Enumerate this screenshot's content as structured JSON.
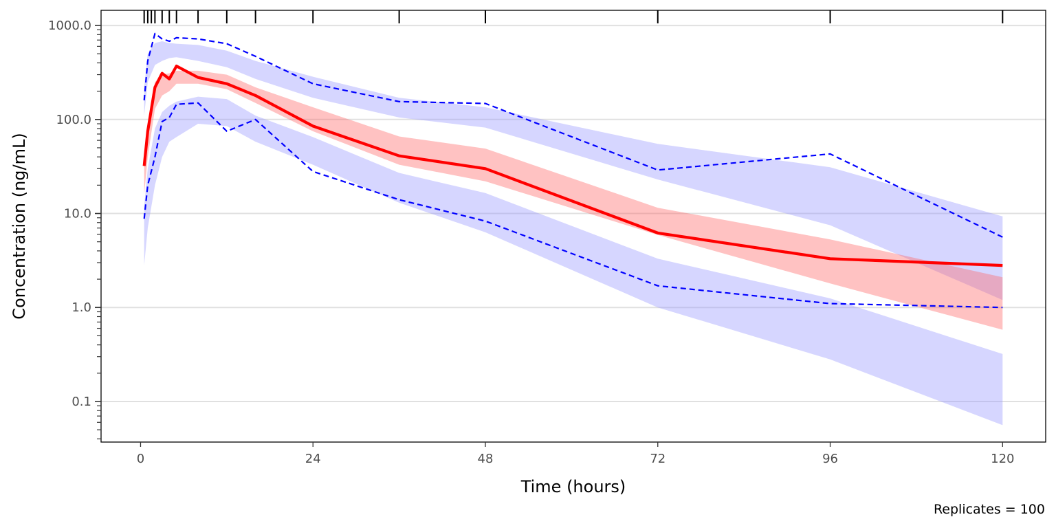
{
  "chart_data": {
    "type": "line",
    "title": "",
    "xlabel": "Time (hours)",
    "ylabel": "Concentration (ng/mL)",
    "caption": "Replicates = 100",
    "x_scale": "linear",
    "y_scale": "log10",
    "xlim": [
      -5.5,
      126
    ],
    "ylim": [
      0.037,
      1450
    ],
    "x_ticks": [
      0,
      24,
      48,
      72,
      96,
      120
    ],
    "x_tick_labels": [
      "0",
      "24",
      "48",
      "72",
      "96",
      "120"
    ],
    "y_ticks": [
      0.1,
      1,
      10,
      100,
      1000
    ],
    "y_tick_labels": [
      "0.1",
      "1.0",
      "10.0",
      "100.0",
      "1000.0"
    ],
    "grid": "horizontal major",
    "rug_x": [
      0.5,
      1,
      1.5,
      2,
      3,
      4,
      5,
      8,
      12,
      16,
      24,
      36,
      48,
      72,
      96,
      120
    ],
    "colors": {
      "median_line": "#ff0000",
      "median_band": "#ff6666",
      "percentile_band": "#9999ff",
      "observed_percentile_line": "#0000ff",
      "grid": "#e0e0e0",
      "axis": "#000000"
    },
    "series": [
      {
        "role": "observed-median",
        "style": "solid",
        "x": [
          0.5,
          1,
          2,
          3,
          4,
          5,
          8,
          12,
          16,
          24,
          36,
          48,
          72,
          96,
          120
        ],
        "y": [
          32,
          75,
          220,
          310,
          270,
          370,
          280,
          240,
          180,
          85,
          41,
          30,
          6.2,
          3.3,
          2.8
        ]
      },
      {
        "role": "observed-upper-percentile",
        "style": "dashed",
        "x": [
          0.5,
          1,
          2,
          3,
          4,
          5,
          8,
          12,
          16,
          24,
          36,
          48,
          72,
          96,
          120
        ],
        "y": [
          160,
          420,
          820,
          720,
          680,
          740,
          720,
          640,
          470,
          240,
          155,
          148,
          29,
          43,
          5.6
        ]
      },
      {
        "role": "observed-lower-percentile",
        "style": "dashed",
        "x": [
          0.5,
          1,
          2,
          3,
          4,
          5,
          8,
          12,
          16,
          24,
          36,
          48,
          72,
          96,
          120
        ],
        "y": [
          8.8,
          20,
          40,
          95,
          105,
          145,
          150,
          75,
          100,
          28,
          14,
          8.3,
          1.7,
          1.1,
          1.0
        ]
      }
    ],
    "bands": [
      {
        "role": "upper-percentile-ci",
        "color": "#9999ff",
        "x": [
          0.5,
          1,
          2,
          3,
          4,
          5,
          8,
          12,
          16,
          24,
          36,
          48,
          72,
          96,
          120
        ],
        "lower": [
          110,
          250,
          380,
          420,
          450,
          460,
          420,
          360,
          270,
          170,
          105,
          82,
          23,
          7.5,
          1.2
        ],
        "upper": [
          220,
          500,
          650,
          680,
          650,
          640,
          620,
          540,
          420,
          285,
          170,
          135,
          55,
          31,
          9.3
        ]
      },
      {
        "role": "median-ci",
        "color": "#ff6666",
        "x": [
          0.5,
          1,
          2,
          3,
          4,
          5,
          8,
          12,
          16,
          24,
          36,
          48,
          72,
          96,
          120
        ],
        "lower": [
          16,
          40,
          130,
          180,
          200,
          240,
          240,
          210,
          150,
          75,
          33,
          22,
          5.9,
          1.8,
          0.58
        ],
        "upper": [
          38,
          90,
          250,
          300,
          310,
          330,
          330,
          300,
          220,
          135,
          66,
          49,
          11.5,
          5.3,
          2.1
        ]
      },
      {
        "role": "lower-percentile-ci",
        "color": "#9999ff",
        "x": [
          0.5,
          1,
          2,
          3,
          4,
          5,
          8,
          12,
          16,
          24,
          36,
          48,
          72,
          96,
          120
        ],
        "lower": [
          2.8,
          7,
          20,
          40,
          58,
          65,
          90,
          85,
          58,
          33,
          13,
          6.3,
          1.0,
          0.28,
          0.056
        ],
        "upper": [
          12,
          30,
          80,
          120,
          140,
          155,
          175,
          165,
          110,
          65,
          27,
          16.5,
          3.3,
          1.25,
          0.32
        ]
      }
    ]
  }
}
